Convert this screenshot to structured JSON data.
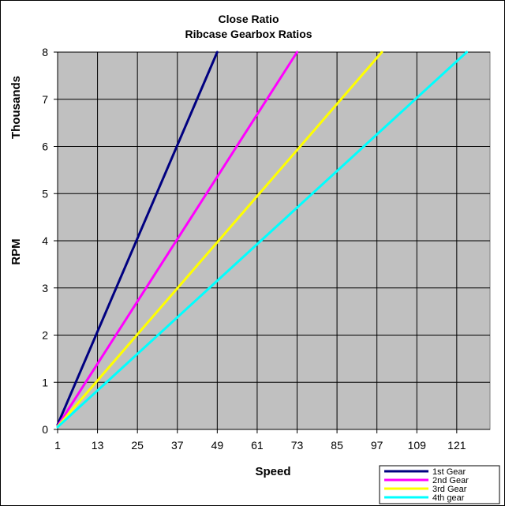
{
  "chart_data": {
    "type": "line",
    "title": "Close Ratio",
    "subtitle": "Ribcase Gearbox Ratios",
    "xlabel": "Speed",
    "ylabel": "RPM",
    "ylabel_units": "Thousands",
    "xlim": [
      1,
      131
    ],
    "ylim": [
      0,
      8
    ],
    "x_ticks": [
      1,
      13,
      25,
      37,
      49,
      61,
      73,
      85,
      97,
      109,
      121
    ],
    "y_ticks": [
      0,
      1,
      2,
      3,
      4,
      5,
      6,
      7,
      8
    ],
    "grid": true,
    "plot_background": "#c0c0c0",
    "legend_position": "bottom-right",
    "series": [
      {
        "name": "1st Gear",
        "color": "#000080",
        "x": [
          1,
          49
        ],
        "y": [
          0.1,
          8.0
        ]
      },
      {
        "name": "2nd Gear",
        "color": "#ff00ff",
        "x": [
          1,
          73
        ],
        "y": [
          0.07,
          8.0
        ]
      },
      {
        "name": "3rd Gear",
        "color": "#ffff00",
        "x": [
          1,
          98.5
        ],
        "y": [
          0.06,
          8.0
        ]
      },
      {
        "name": "4th gear",
        "color": "#00ffff",
        "x": [
          1,
          124
        ],
        "y": [
          0.05,
          8.0
        ]
      }
    ]
  }
}
